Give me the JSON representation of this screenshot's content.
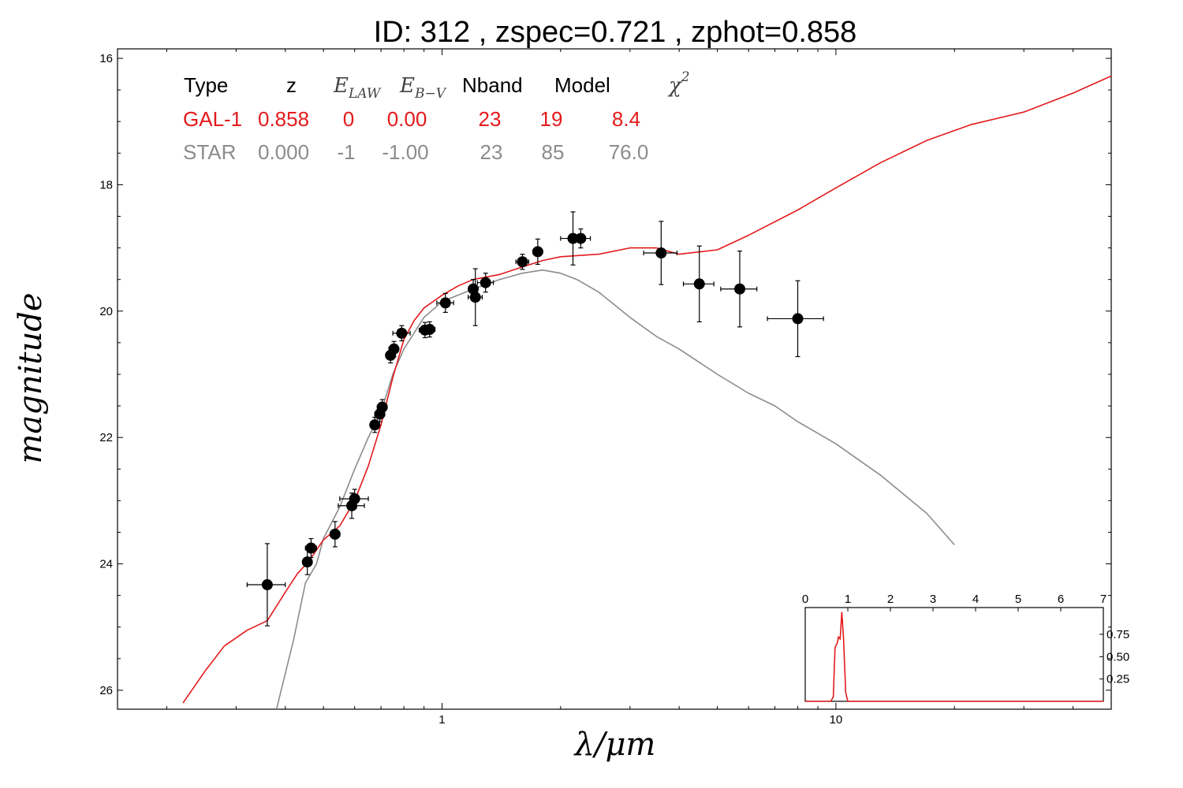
{
  "title": "ID:  312   , zspec=0.721 , zphot=0.858",
  "colors": {
    "galaxy": "#e41a1c",
    "star": "#8c8c8c",
    "points": "#000000",
    "axes": "#000000"
  },
  "table": {
    "headers": {
      "type": "Type",
      "z": "z",
      "elaw": "E",
      "elaw_sub": "LAW",
      "ebv": "E",
      "ebv_sub": "B−V",
      "nband": "Nband",
      "model": "Model",
      "chi": "χ",
      "chi_sup": "2"
    },
    "rows": [
      {
        "type": "GAL-1",
        "z": "0.858",
        "elaw": "0",
        "ebv": "0.00",
        "nband": "23",
        "model": "19",
        "chi2": "8.4"
      },
      {
        "type": "STAR",
        "z": "0.000",
        "elaw": "-1",
        "ebv": "-1.00",
        "nband": "23",
        "model": "85",
        "chi2": "76.0"
      }
    ]
  },
  "chart_data": [
    {
      "type": "scatter",
      "xlabel": "λ/μm",
      "ylabel": "magnitude",
      "xscale": "log",
      "xlim": [
        0.15,
        50
      ],
      "ylim": [
        26.3,
        15.85
      ],
      "y_inverted": true,
      "x_ticks": [
        "1",
        "10"
      ],
      "y_ticks": [
        "16",
        "18",
        "20",
        "22",
        "24",
        "26"
      ],
      "photometry": [
        {
          "x": 0.36,
          "y": 24.33,
          "xerr": 0.04,
          "yerr": 0.65
        },
        {
          "x": 0.455,
          "y": 23.97,
          "xerr": 0.01,
          "yerr": 0.2
        },
        {
          "x": 0.465,
          "y": 23.75,
          "xerr": 0.015,
          "yerr": 0.15
        },
        {
          "x": 0.535,
          "y": 23.53,
          "xerr": 0.015,
          "yerr": 0.2
        },
        {
          "x": 0.59,
          "y": 23.08,
          "xerr": 0.045,
          "yerr": 0.2
        },
        {
          "x": 0.6,
          "y": 22.97,
          "xerr": 0.05,
          "yerr": 0.15
        },
        {
          "x": 0.675,
          "y": 21.8,
          "xerr": 0.01,
          "yerr": 0.12
        },
        {
          "x": 0.695,
          "y": 21.63,
          "xerr": 0.02,
          "yerr": 0.12
        },
        {
          "x": 0.705,
          "y": 21.52,
          "xerr": 0.02,
          "yerr": 0.12
        },
        {
          "x": 0.74,
          "y": 20.7,
          "xerr": 0.02,
          "yerr": 0.12
        },
        {
          "x": 0.755,
          "y": 20.6,
          "xerr": 0.02,
          "yerr": 0.12
        },
        {
          "x": 0.79,
          "y": 20.35,
          "xerr": 0.04,
          "yerr": 0.12
        },
        {
          "x": 0.905,
          "y": 20.3,
          "xerr": 0.03,
          "yerr": 0.12
        },
        {
          "x": 0.93,
          "y": 20.29,
          "xerr": 0.03,
          "yerr": 0.12
        },
        {
          "x": 1.02,
          "y": 19.87,
          "xerr": 0.05,
          "yerr": 0.15
        },
        {
          "x": 1.2,
          "y": 19.65,
          "xerr": 0.03,
          "yerr": 0.15
        },
        {
          "x": 1.215,
          "y": 19.78,
          "xerr": 0.05,
          "yerr": 0.45
        },
        {
          "x": 1.29,
          "y": 19.55,
          "xerr": 0.06,
          "yerr": 0.15
        },
        {
          "x": 1.6,
          "y": 19.22,
          "xerr": 0.06,
          "yerr": 0.12
        },
        {
          "x": 1.75,
          "y": 19.06,
          "xerr": 0.05,
          "yerr": 0.2
        },
        {
          "x": 2.15,
          "y": 18.85,
          "xerr": 0.15,
          "yerr": 0.42
        },
        {
          "x": 2.25,
          "y": 18.85,
          "xerr": 0.13,
          "yerr": 0.15
        },
        {
          "x": 3.6,
          "y": 19.08,
          "xerr": 0.35,
          "yerr": 0.5
        },
        {
          "x": 4.5,
          "y": 19.57,
          "xerr": 0.4,
          "yerr": 0.6
        },
        {
          "x": 5.7,
          "y": 19.65,
          "xerr": 0.6,
          "yerr": 0.6
        },
        {
          "x": 8.0,
          "y": 20.12,
          "xerr": 1.3,
          "yerr": 0.6
        }
      ],
      "series": [
        {
          "name": "GAL-1",
          "color": "#e41a1c",
          "x": [
            0.22,
            0.25,
            0.28,
            0.32,
            0.36,
            0.4,
            0.43,
            0.46,
            0.5,
            0.55,
            0.6,
            0.65,
            0.7,
            0.75,
            0.8,
            0.85,
            0.9,
            1.0,
            1.1,
            1.2,
            1.4,
            1.6,
            1.8,
            2.0,
            2.5,
            3.0,
            3.5,
            4.0,
            5.0,
            6.0,
            8.0,
            10.0,
            13.0,
            17.0,
            22.0,
            30.0,
            40.0,
            50.0
          ],
          "y": [
            26.2,
            25.7,
            25.3,
            25.05,
            24.9,
            24.45,
            24.15,
            23.95,
            23.62,
            23.4,
            23.0,
            22.45,
            21.8,
            21.05,
            20.45,
            20.15,
            19.95,
            19.75,
            19.6,
            19.5,
            19.42,
            19.3,
            19.2,
            19.14,
            19.1,
            19.0,
            19.0,
            19.1,
            19.03,
            18.8,
            18.4,
            18.05,
            17.65,
            17.3,
            17.05,
            16.85,
            16.55,
            16.28
          ]
        },
        {
          "name": "STAR",
          "color": "#8c8c8c",
          "x": [
            0.38,
            0.42,
            0.45,
            0.48,
            0.5,
            0.55,
            0.6,
            0.65,
            0.7,
            0.75,
            0.8,
            0.9,
            1.0,
            1.2,
            1.4,
            1.6,
            1.8,
            2.0,
            2.2,
            2.5,
            3.0,
            3.5,
            4.0,
            5.0,
            6.0,
            7.0,
            8.0,
            10.0,
            13.0,
            17.0,
            20.0
          ],
          "y": [
            26.3,
            25.2,
            24.3,
            24.0,
            23.6,
            23.1,
            22.5,
            22.0,
            21.6,
            21.0,
            20.6,
            20.1,
            19.85,
            19.65,
            19.5,
            19.4,
            19.35,
            19.4,
            19.5,
            19.7,
            20.1,
            20.4,
            20.6,
            21.0,
            21.3,
            21.5,
            21.75,
            22.1,
            22.6,
            23.2,
            23.7
          ]
        }
      ]
    },
    {
      "type": "line",
      "xlim": [
        0,
        7
      ],
      "ylim": [
        0,
        1.05
      ],
      "x_ticks": [
        "0",
        "1",
        "2",
        "3",
        "4",
        "5",
        "6",
        "7"
      ],
      "y_ticks": [
        "0.25",
        "0.50",
        "0.75"
      ],
      "series": [
        {
          "name": "GAL-1",
          "color": "#e41a1c",
          "x": [
            0.0,
            0.6,
            0.66,
            0.7,
            0.75,
            0.78,
            0.82,
            0.86,
            0.9,
            0.95,
            1.0,
            7.0
          ],
          "y": [
            0.0,
            0.0,
            0.05,
            0.6,
            0.65,
            0.72,
            0.7,
            1.0,
            0.7,
            0.1,
            0.0,
            0.0
          ]
        }
      ]
    }
  ]
}
